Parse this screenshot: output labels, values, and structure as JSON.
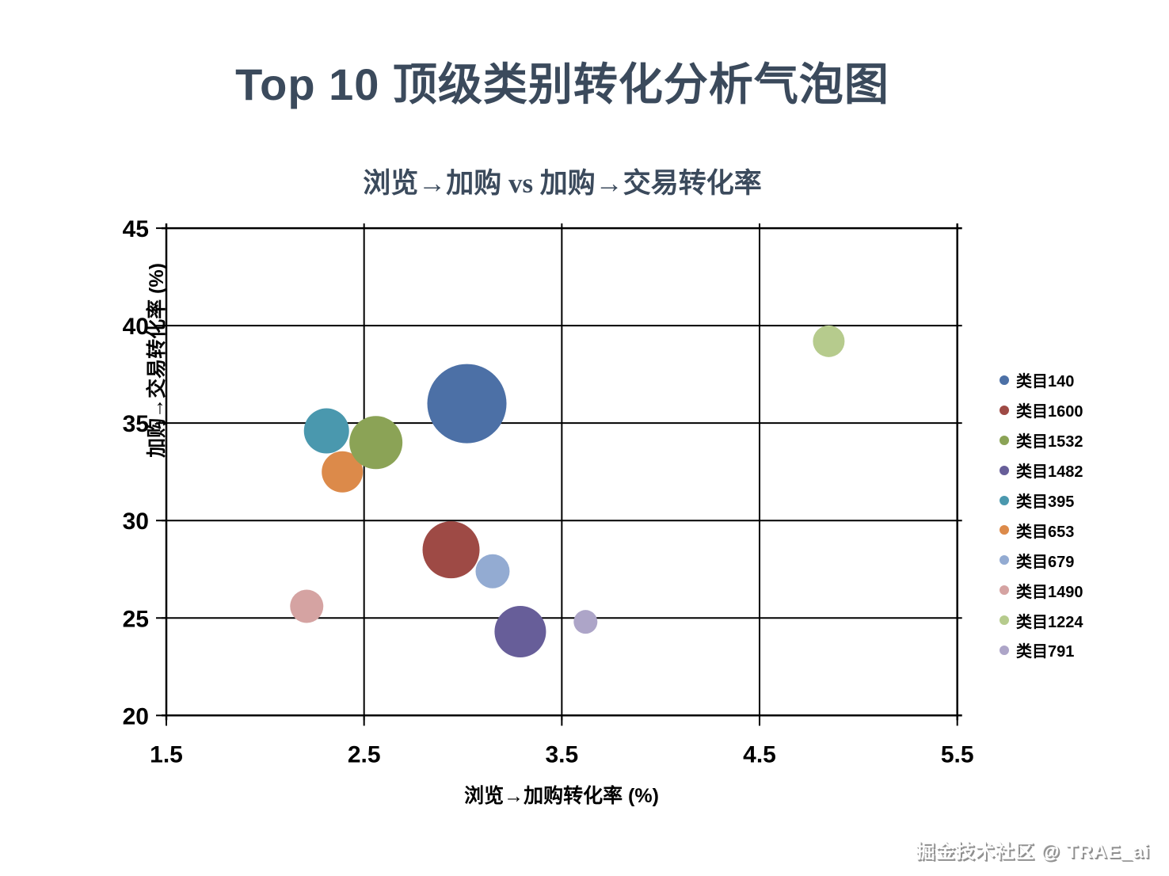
{
  "chart_data": {
    "type": "scatter",
    "title": "Top 10 顶级类别转化分析气泡图",
    "subtitle": "浏览→加购 vs 加购→交易转化率",
    "xlabel": "浏览→加购转化率 (%)",
    "ylabel": "加购→交易转化率 (%)",
    "xlim": [
      1.5,
      5.5
    ],
    "ylim": [
      20,
      45
    ],
    "xticks": [
      "1.5",
      "2.5",
      "3.5",
      "4.5",
      "5.5"
    ],
    "yticks": [
      "20",
      "25",
      "30",
      "35",
      "40",
      "45"
    ],
    "grid": true,
    "legend_position": "right",
    "series": [
      {
        "name": "类目140",
        "x": 3.02,
        "y": 36.0,
        "radius_px": 50,
        "color": "#4c70a6",
        "z": 0
      },
      {
        "name": "类目1600",
        "x": 2.94,
        "y": 28.5,
        "radius_px": 36,
        "color": "#9e4a45",
        "z": 0
      },
      {
        "name": "类目1532",
        "x": 2.56,
        "y": 34.0,
        "radius_px": 33.5,
        "color": "#8ba356",
        "z": 2
      },
      {
        "name": "类目1482",
        "x": 3.29,
        "y": 24.3,
        "radius_px": 32.5,
        "color": "#675e99",
        "z": 0
      },
      {
        "name": "类目395",
        "x": 2.31,
        "y": 34.6,
        "radius_px": 28.5,
        "color": "#4a98ae",
        "z": 0
      },
      {
        "name": "类目653",
        "x": 2.39,
        "y": 32.5,
        "radius_px": 26,
        "color": "#dc8a4a",
        "z": 1
      },
      {
        "name": "类目679",
        "x": 3.15,
        "y": 27.4,
        "radius_px": 21.5,
        "color": "#93abd2",
        "z": 1
      },
      {
        "name": "类目1490",
        "x": 2.21,
        "y": 25.6,
        "radius_px": 21,
        "color": "#d5a3a2",
        "z": 0
      },
      {
        "name": "类目1224",
        "x": 4.85,
        "y": 39.2,
        "radius_px": 20,
        "color": "#b6cb8d",
        "z": 0
      },
      {
        "name": "类目791",
        "x": 3.62,
        "y": 24.8,
        "radius_px": 15,
        "color": "#ada5c8",
        "z": 0
      }
    ]
  },
  "watermark": {
    "text": "掘金技术社区 @ TRAE_ai"
  }
}
